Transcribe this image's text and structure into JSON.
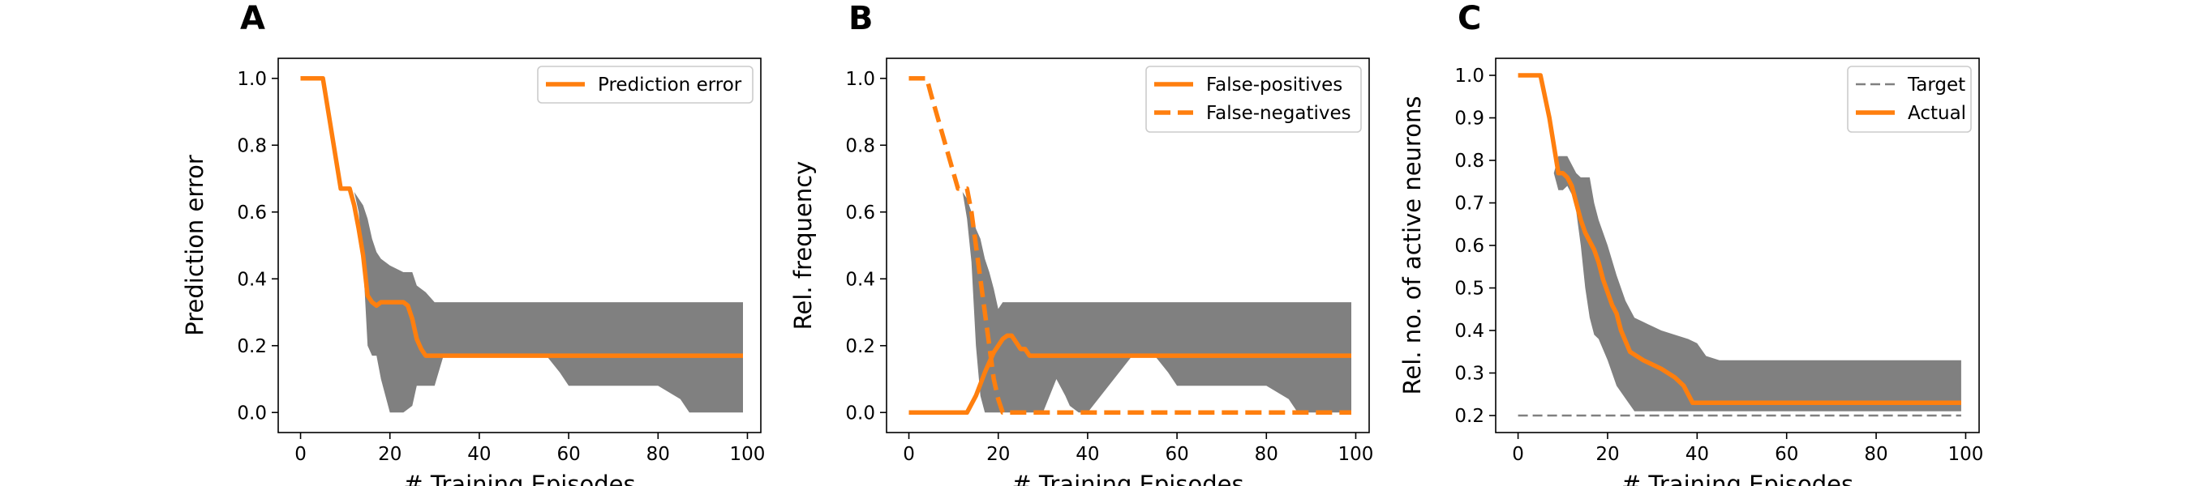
{
  "chart_data": [
    {
      "panel": "A",
      "type": "line",
      "xlabel": "# Training Episodes",
      "ylabel": "Prediction error",
      "xlim": [
        -5,
        103
      ],
      "ylim": [
        -0.06,
        1.06
      ],
      "xticks": [
        0,
        20,
        40,
        60,
        80,
        100
      ],
      "yticks": [
        0.0,
        0.2,
        0.4,
        0.6,
        0.8,
        1.0
      ],
      "ytick_labels": [
        "0.0",
        "0.2",
        "0.4",
        "0.6",
        "0.8",
        "1.0"
      ],
      "grid": false,
      "legend_position": "top-right",
      "band": {
        "color": "#808080",
        "x": [
          12,
          13,
          14,
          15,
          16,
          17,
          18,
          20,
          23,
          25,
          26,
          28,
          30,
          32,
          35,
          40,
          50,
          55,
          58,
          60,
          70,
          80,
          85,
          87,
          90,
          95,
          99
        ],
        "upper": [
          0.66,
          0.64,
          0.62,
          0.58,
          0.52,
          0.48,
          0.46,
          0.44,
          0.42,
          0.42,
          0.38,
          0.36,
          0.33,
          0.33,
          0.33,
          0.33,
          0.33,
          0.33,
          0.33,
          0.33,
          0.33,
          0.33,
          0.33,
          0.33,
          0.33,
          0.33,
          0.33
        ],
        "lower": [
          0.66,
          0.6,
          0.45,
          0.2,
          0.17,
          0.17,
          0.1,
          0.0,
          0.0,
          0.02,
          0.08,
          0.08,
          0.08,
          0.17,
          0.17,
          0.17,
          0.17,
          0.17,
          0.12,
          0.08,
          0.08,
          0.08,
          0.04,
          0.0,
          0.0,
          0.0,
          0.0
        ]
      },
      "series": [
        {
          "name": "Prediction error",
          "color": "#ff7f0e",
          "dash": "solid",
          "x": [
            0,
            5,
            9,
            10,
            11,
            12,
            13,
            14,
            15,
            16,
            17,
            18,
            19,
            20,
            22,
            23,
            24,
            25,
            26,
            27,
            28,
            30,
            40,
            60,
            80,
            99
          ],
          "y": [
            1.0,
            1.0,
            0.67,
            0.67,
            0.67,
            0.62,
            0.55,
            0.47,
            0.35,
            0.33,
            0.32,
            0.33,
            0.33,
            0.33,
            0.33,
            0.33,
            0.32,
            0.28,
            0.22,
            0.19,
            0.17,
            0.17,
            0.17,
            0.17,
            0.17,
            0.17
          ]
        }
      ]
    },
    {
      "panel": "B",
      "type": "line",
      "xlabel": "# Training Episodes",
      "ylabel": "Rel. frequency",
      "xlim": [
        -5,
        103
      ],
      "ylim": [
        -0.06,
        1.06
      ],
      "xticks": [
        0,
        20,
        40,
        60,
        80,
        100
      ],
      "yticks": [
        0.0,
        0.2,
        0.4,
        0.6,
        0.8,
        1.0
      ],
      "ytick_labels": [
        "0.0",
        "0.2",
        "0.4",
        "0.6",
        "0.8",
        "1.0"
      ],
      "grid": false,
      "legend_position": "top-right",
      "band": {
        "color": "#808080",
        "x": [
          12,
          13,
          14,
          15,
          16,
          17,
          18,
          19,
          20,
          21,
          22,
          23,
          25,
          30,
          33,
          35,
          36,
          38,
          40,
          50,
          55,
          58,
          60,
          70,
          80,
          85,
          87,
          90,
          95,
          99
        ],
        "upper": [
          0.66,
          0.64,
          0.6,
          0.55,
          0.52,
          0.46,
          0.42,
          0.37,
          0.31,
          0.33,
          0.33,
          0.33,
          0.33,
          0.33,
          0.33,
          0.33,
          0.33,
          0.33,
          0.33,
          0.33,
          0.33,
          0.33,
          0.33,
          0.33,
          0.33,
          0.33,
          0.33,
          0.33,
          0.33,
          0.33
        ],
        "lower": [
          0.66,
          0.58,
          0.45,
          0.2,
          0.05,
          0.0,
          0.0,
          0.0,
          0.0,
          0.0,
          0.0,
          0.0,
          0.0,
          0.0,
          0.1,
          0.05,
          0.02,
          0.0,
          0.0,
          0.17,
          0.17,
          0.12,
          0.08,
          0.08,
          0.08,
          0.04,
          0.0,
          0.0,
          0.0,
          0.0
        ]
      },
      "series": [
        {
          "name": "False-positives",
          "color": "#ff7f0e",
          "dash": "solid",
          "x": [
            0,
            13,
            15,
            17,
            18,
            19,
            20,
            21,
            22,
            23,
            24,
            25,
            26,
            27,
            28,
            30,
            40,
            60,
            80,
            99
          ],
          "y": [
            0.0,
            0.0,
            0.05,
            0.12,
            0.15,
            0.18,
            0.2,
            0.22,
            0.23,
            0.23,
            0.21,
            0.19,
            0.19,
            0.17,
            0.17,
            0.17,
            0.17,
            0.17,
            0.17,
            0.17
          ]
        },
        {
          "name": "False-negatives",
          "color": "#ff7f0e",
          "dash": "dashed",
          "x": [
            0,
            4,
            5,
            11,
            13,
            14,
            15,
            16,
            17,
            18,
            19,
            20,
            21,
            22,
            30,
            60,
            99
          ],
          "y": [
            1.0,
            1.0,
            0.95,
            0.67,
            0.67,
            0.6,
            0.5,
            0.4,
            0.3,
            0.2,
            0.1,
            0.04,
            0.0,
            0.0,
            0.0,
            0.0,
            0.0
          ]
        }
      ]
    },
    {
      "panel": "C",
      "type": "line",
      "xlabel": "# Training Episodes",
      "ylabel": "Rel. no. of active neurons",
      "xlim": [
        -5,
        103
      ],
      "ylim": [
        0.16,
        1.04
      ],
      "xticks": [
        0,
        20,
        40,
        60,
        80,
        100
      ],
      "yticks": [
        0.2,
        0.3,
        0.4,
        0.5,
        0.6,
        0.7,
        0.8,
        0.9,
        1.0
      ],
      "ytick_labels": [
        "0.2",
        "0.3",
        "0.4",
        "0.5",
        "0.6",
        "0.7",
        "0.8",
        "0.9",
        "1.0"
      ],
      "grid": false,
      "legend_position": "top-right",
      "band": {
        "color": "#808080",
        "x": [
          8,
          9,
          10,
          11,
          12,
          13,
          14,
          15,
          16,
          17,
          18,
          20,
          22,
          24,
          26,
          28,
          30,
          32,
          35,
          38,
          40,
          42,
          45,
          50,
          60,
          70,
          80,
          90,
          99
        ],
        "upper": [
          0.77,
          0.81,
          0.81,
          0.81,
          0.79,
          0.77,
          0.76,
          0.76,
          0.76,
          0.7,
          0.66,
          0.6,
          0.53,
          0.47,
          0.43,
          0.42,
          0.41,
          0.4,
          0.39,
          0.38,
          0.37,
          0.34,
          0.33,
          0.33,
          0.33,
          0.33,
          0.33,
          0.33,
          0.33
        ],
        "lower": [
          0.77,
          0.73,
          0.73,
          0.74,
          0.72,
          0.68,
          0.6,
          0.5,
          0.43,
          0.39,
          0.38,
          0.33,
          0.27,
          0.24,
          0.21,
          0.21,
          0.21,
          0.21,
          0.21,
          0.21,
          0.21,
          0.21,
          0.21,
          0.21,
          0.21,
          0.21,
          0.21,
          0.21,
          0.21
        ]
      },
      "series": [
        {
          "name": "Target",
          "color": "#808080",
          "dash": "dashed",
          "thin": true,
          "x": [
            0,
            99
          ],
          "y": [
            0.2,
            0.2
          ]
        },
        {
          "name": "Actual",
          "color": "#ff7f0e",
          "dash": "solid",
          "x": [
            0,
            5,
            7,
            9,
            10,
            11,
            12,
            13,
            14,
            15,
            16,
            17,
            18,
            19,
            20,
            21,
            22,
            23,
            25,
            28,
            32,
            35,
            37,
            38,
            39,
            40,
            60,
            80,
            99
          ],
          "y": [
            1.0,
            1.0,
            0.9,
            0.77,
            0.77,
            0.76,
            0.74,
            0.7,
            0.66,
            0.63,
            0.61,
            0.59,
            0.56,
            0.52,
            0.49,
            0.46,
            0.44,
            0.4,
            0.35,
            0.33,
            0.31,
            0.29,
            0.27,
            0.25,
            0.23,
            0.23,
            0.23,
            0.23,
            0.23
          ]
        }
      ]
    }
  ]
}
